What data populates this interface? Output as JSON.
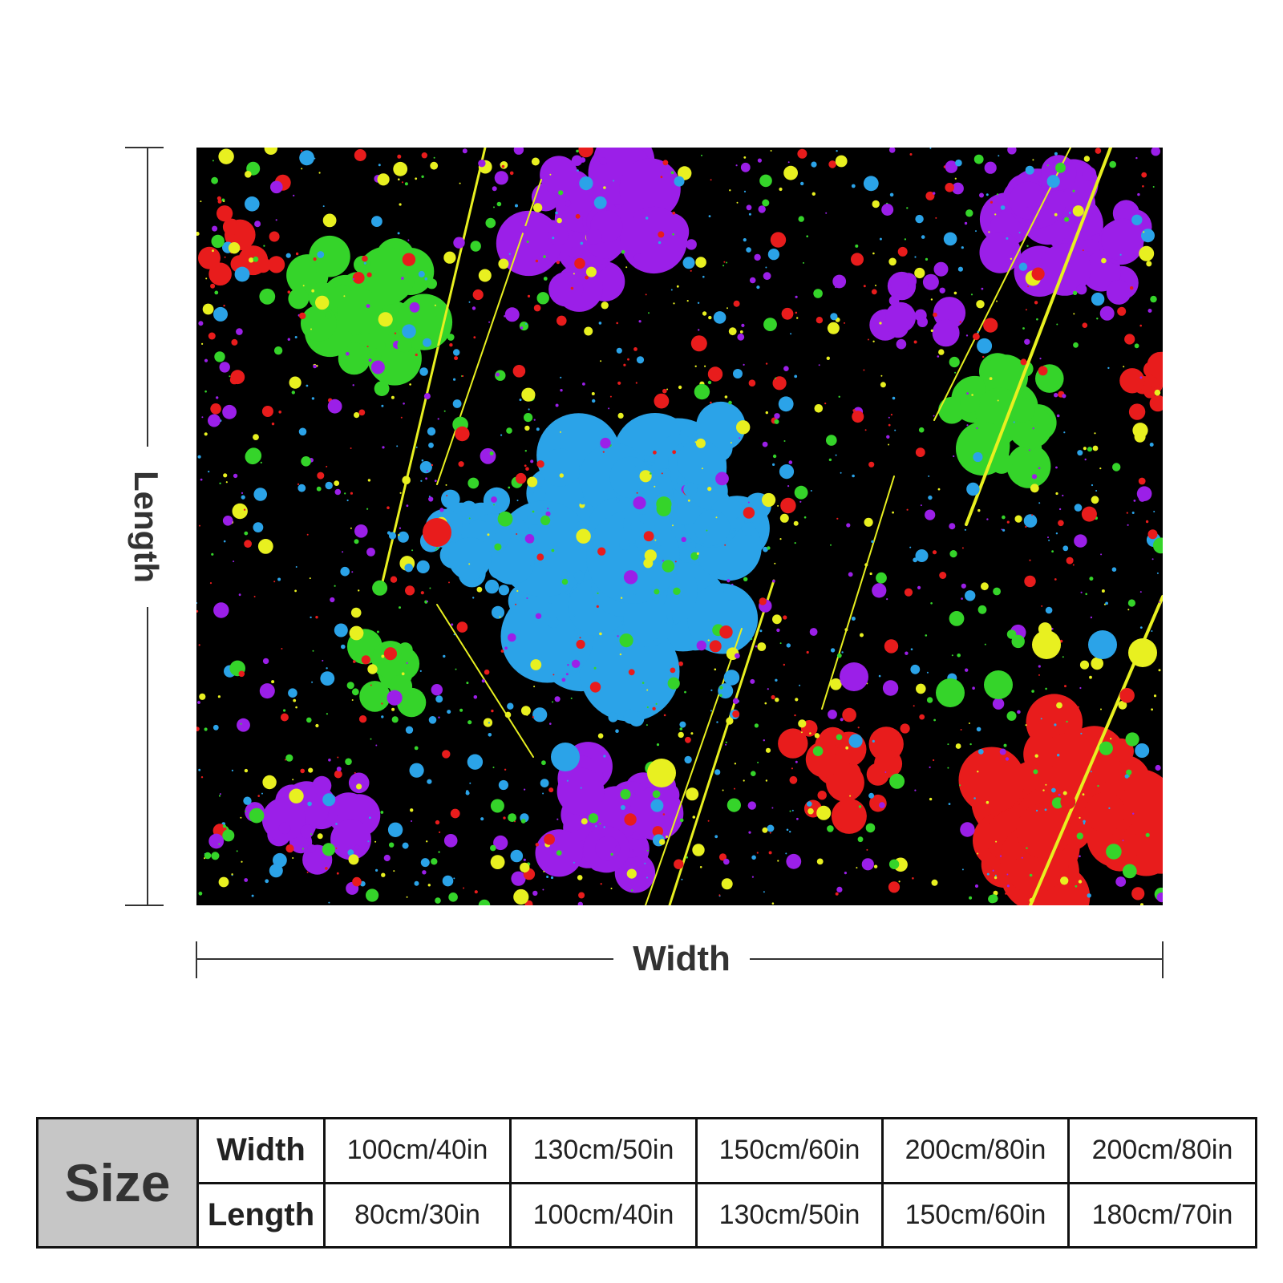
{
  "diagram": {
    "length_label": "Length",
    "width_label": "Width"
  },
  "artwork": {
    "icon": "paint-splatter-image",
    "background_color": "#000000",
    "colors": [
      "#9b1fe8",
      "#2ba3e8",
      "#35d42a",
      "#e8f020",
      "#e81c1c"
    ]
  },
  "size_table": {
    "header": "Size",
    "rows": [
      {
        "label": "Width",
        "values": [
          "100cm/40in",
          "130cm/50in",
          "150cm/60in",
          "200cm/80in",
          "200cm/80in"
        ]
      },
      {
        "label": "Length",
        "values": [
          "80cm/30in",
          "100cm/40in",
          "130cm/50in",
          "150cm/60in",
          "180cm/70in"
        ]
      }
    ]
  }
}
